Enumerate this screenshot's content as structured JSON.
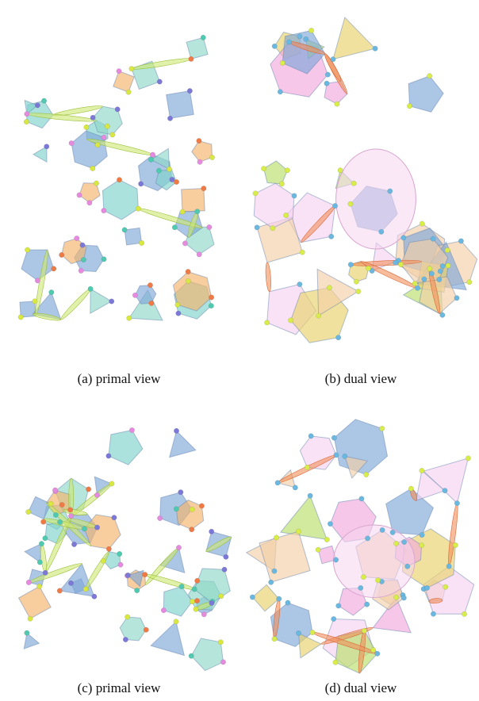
{
  "figure": {
    "panels": [
      {
        "caption": "(a) primal view"
      },
      {
        "caption": "(b) dual view"
      },
      {
        "caption": "(c) primal view"
      },
      {
        "caption": "(d) dual view"
      }
    ]
  }
}
